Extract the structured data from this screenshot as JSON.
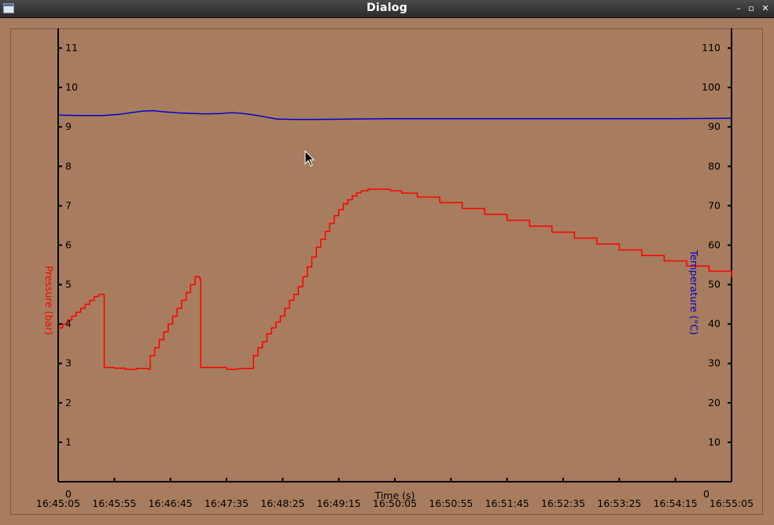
{
  "window": {
    "title": "Dialog",
    "buttons": {
      "minimize": "–",
      "maximize": "▫",
      "close": "✕"
    }
  },
  "colors": {
    "pressure": "#ff0000",
    "temperature": "#0000cc",
    "background": "#a87c5e"
  },
  "chart_data": {
    "type": "line",
    "xlabel": "Time (s)",
    "x_ticks": [
      "16:45:05",
      "16:45:55",
      "16:46:45",
      "16:47:35",
      "16:48:25",
      "16:49:15",
      "16:50:05",
      "16:50:55",
      "16:51:45",
      "16:52:35",
      "16:53:25",
      "16:54:15",
      "16:55:05"
    ],
    "x_range_seconds": [
      0,
      600
    ],
    "left_axis": {
      "label": "Pressure (bar)",
      "ylim": [
        0,
        11.5
      ],
      "ticks": [
        0,
        1,
        2,
        3,
        4,
        5,
        6,
        7,
        8,
        9,
        10,
        11
      ]
    },
    "right_axis": {
      "label": "Temperature (°C)",
      "ylim": [
        0,
        115
      ],
      "ticks": [
        0,
        10,
        20,
        30,
        40,
        50,
        60,
        70,
        80,
        90,
        100,
        110
      ]
    },
    "series": [
      {
        "name": "Pressure (bar)",
        "axis": "left",
        "step": true,
        "points": [
          [
            0,
            3.9
          ],
          [
            4,
            4.0
          ],
          [
            8,
            4.1
          ],
          [
            12,
            4.2
          ],
          [
            16,
            4.3
          ],
          [
            20,
            4.4
          ],
          [
            24,
            4.5
          ],
          [
            28,
            4.6
          ],
          [
            32,
            4.7
          ],
          [
            36,
            4.75
          ],
          [
            40,
            4.75
          ],
          [
            41,
            2.9
          ],
          [
            50,
            2.88
          ],
          [
            60,
            2.85
          ],
          [
            70,
            2.87
          ],
          [
            80,
            2.85
          ],
          [
            82,
            3.2
          ],
          [
            86,
            3.4
          ],
          [
            90,
            3.6
          ],
          [
            94,
            3.8
          ],
          [
            98,
            4.0
          ],
          [
            102,
            4.2
          ],
          [
            106,
            4.4
          ],
          [
            110,
            4.6
          ],
          [
            114,
            4.8
          ],
          [
            118,
            5.0
          ],
          [
            122,
            5.2
          ],
          [
            126,
            5.15
          ],
          [
            127,
            2.9
          ],
          [
            140,
            2.9
          ],
          [
            150,
            2.85
          ],
          [
            160,
            2.87
          ],
          [
            172,
            2.87
          ],
          [
            174,
            3.2
          ],
          [
            178,
            3.4
          ],
          [
            182,
            3.55
          ],
          [
            186,
            3.75
          ],
          [
            190,
            3.9
          ],
          [
            194,
            4.05
          ],
          [
            198,
            4.2
          ],
          [
            202,
            4.4
          ],
          [
            206,
            4.6
          ],
          [
            210,
            4.75
          ],
          [
            214,
            4.95
          ],
          [
            218,
            5.2
          ],
          [
            222,
            5.45
          ],
          [
            226,
            5.7
          ],
          [
            230,
            5.95
          ],
          [
            234,
            6.15
          ],
          [
            238,
            6.35
          ],
          [
            242,
            6.55
          ],
          [
            246,
            6.75
          ],
          [
            250,
            6.9
          ],
          [
            254,
            7.05
          ],
          [
            258,
            7.15
          ],
          [
            262,
            7.25
          ],
          [
            266,
            7.33
          ],
          [
            270,
            7.38
          ],
          [
            276,
            7.42
          ],
          [
            286,
            7.42
          ],
          [
            296,
            7.38
          ],
          [
            306,
            7.32
          ],
          [
            320,
            7.22
          ],
          [
            340,
            7.08
          ],
          [
            360,
            6.93
          ],
          [
            380,
            6.78
          ],
          [
            400,
            6.63
          ],
          [
            420,
            6.48
          ],
          [
            440,
            6.33
          ],
          [
            460,
            6.18
          ],
          [
            480,
            6.03
          ],
          [
            500,
            5.88
          ],
          [
            520,
            5.74
          ],
          [
            540,
            5.6
          ],
          [
            560,
            5.47
          ],
          [
            580,
            5.34
          ],
          [
            600,
            5.18
          ]
        ]
      },
      {
        "name": "Temperature (°C)",
        "axis": "right",
        "step": false,
        "points": [
          [
            0,
            93.0
          ],
          [
            20,
            92.9
          ],
          [
            40,
            92.9
          ],
          [
            55,
            93.2
          ],
          [
            65,
            93.6
          ],
          [
            75,
            94.0
          ],
          [
            85,
            94.1
          ],
          [
            95,
            93.8
          ],
          [
            110,
            93.5
          ],
          [
            130,
            93.3
          ],
          [
            145,
            93.4
          ],
          [
            155,
            93.6
          ],
          [
            165,
            93.4
          ],
          [
            175,
            93.0
          ],
          [
            185,
            92.5
          ],
          [
            195,
            92.0
          ],
          [
            210,
            91.9
          ],
          [
            230,
            91.9
          ],
          [
            260,
            92.0
          ],
          [
            300,
            92.1
          ],
          [
            350,
            92.1
          ],
          [
            400,
            92.1
          ],
          [
            450,
            92.1
          ],
          [
            500,
            92.1
          ],
          [
            550,
            92.1
          ],
          [
            600,
            92.2
          ]
        ]
      }
    ]
  }
}
